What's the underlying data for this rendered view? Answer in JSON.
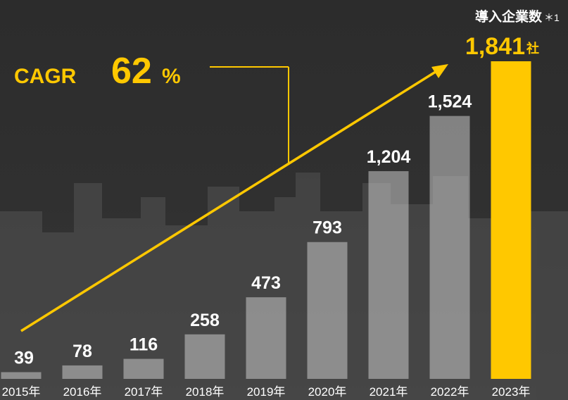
{
  "chart_data": {
    "type": "bar",
    "title": "導入企業数",
    "title_note": "＊1",
    "categories": [
      "2015年",
      "2016年",
      "2017年",
      "2018年",
      "2019年",
      "2020年",
      "2021年",
      "2022年",
      "2023年"
    ],
    "values": [
      39,
      78,
      116,
      258,
      473,
      793,
      1204,
      1524,
      1841
    ],
    "value_labels": [
      "39",
      "78",
      "116",
      "258",
      "473",
      "793",
      "1,204",
      "1,524",
      "1,841"
    ],
    "unit": "社",
    "colors": [
      "#c8c8c8",
      "#c8c8c8",
      "#c8c8c8",
      "#c8c8c8",
      "#c8c8c8",
      "#c8c8c8",
      "#c8c8c8",
      "#c8c8c8",
      "#ffc800"
    ],
    "ylim": [
      0,
      1841
    ],
    "annotation": {
      "label": "CAGR",
      "value": "62",
      "unit": "%"
    }
  }
}
